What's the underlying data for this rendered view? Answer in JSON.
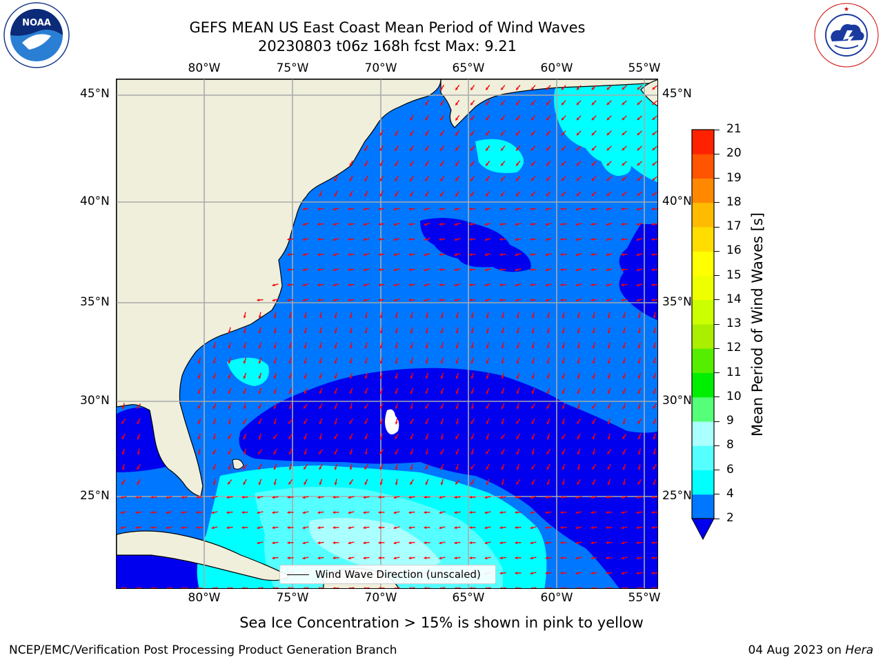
{
  "title": {
    "line1": "GEFS MEAN US East Coast Mean Period of Wind Waves",
    "line2": "20230803 t06z 168h fcst   Max: 9.21"
  },
  "logos": {
    "left_text": "NATIONAL OCEANIC AND ATMOSPHERIC ADMINISTRATION · U.S. DEPARTMENT OF COMMERCE",
    "left_word": "NOAA",
    "right_text": "NATIONAL WEATHER SERVICE"
  },
  "map": {
    "lon_labels": [
      "80°W",
      "75°W",
      "70°W",
      "65°W",
      "60°W",
      "55°W"
    ],
    "lat_labels": [
      "45°N",
      "40°N",
      "35°N",
      "30°N",
      "25°N"
    ],
    "land_color": "#efefdc",
    "period_colors": {
      "2-4": "#0077ff",
      "below-2": "#0000ee",
      "4-6": "#00ffff",
      "6-8": "#55ffff",
      "8-9": "#aaffff",
      "grid": "#aaaaaa",
      "arrow": "#ff0000"
    }
  },
  "legend": {
    "label": "Wind Wave Direction (unscaled)"
  },
  "colorbar": {
    "label": "Mean Period of Wind Waves [s]",
    "ticks": [
      "2",
      "4",
      "6",
      "8",
      "9",
      "10",
      "11",
      "12",
      "13",
      "14",
      "15",
      "16",
      "17",
      "18",
      "19",
      "20",
      "21"
    ],
    "colors": [
      "#0077ff",
      "#00ffff",
      "#55ffff",
      "#aaffff",
      "#55ff77",
      "#00ee00",
      "#55ee00",
      "#aaee00",
      "#ccff00",
      "#eeff00",
      "#ffff00",
      "#ffdd00",
      "#ffbb00",
      "#ff8800",
      "#ff5500",
      "#ff2200",
      "#ff0000"
    ],
    "extend_color": "#0000ee"
  },
  "footnote": "Sea Ice Concentration > 15% is shown in pink to yellow",
  "footer": {
    "left": "NCEP/EMC/Verification Post Processing Product Generation Branch",
    "date": "04 Aug 2023 on ",
    "machine": "Hera"
  }
}
